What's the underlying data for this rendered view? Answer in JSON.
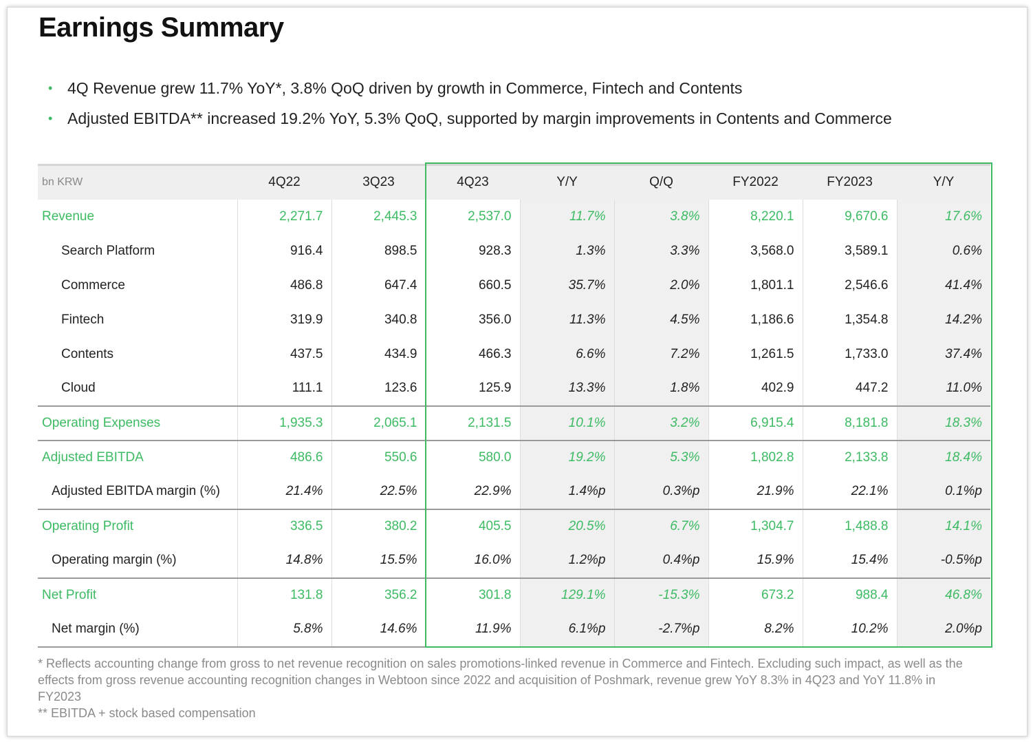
{
  "title": "Earnings Summary",
  "bullets": [
    "4Q Revenue grew 11.7% YoY*, 3.8% QoQ driven by growth in Commerce, Fintech and Contents",
    "Adjusted EBITDA** increased 19.2% YoY, 5.3% QoQ, supported by margin improvements in Contents and Commerce"
  ],
  "accent_color": "#3dbb63",
  "table": {
    "unit": "bn KRW",
    "columns": [
      "4Q22",
      "3Q23",
      "4Q23",
      "Y/Y",
      "Q/Q",
      "FY2022",
      "FY2023",
      "Y/Y"
    ],
    "rows": [
      {
        "label": "Revenue",
        "type": "group",
        "values": [
          "2,271.7",
          "2,445.3",
          "2,537.0",
          "11.7%",
          "3.8%",
          "8,220.1",
          "9,670.6",
          "17.6%"
        ]
      },
      {
        "label": "Search Platform",
        "type": "sub",
        "values": [
          "916.4",
          "898.5",
          "928.3",
          "1.3%",
          "3.3%",
          "3,568.0",
          "3,589.1",
          "0.6%"
        ]
      },
      {
        "label": "Commerce",
        "type": "sub",
        "values": [
          "486.8",
          "647.4",
          "660.5",
          "35.7%",
          "2.0%",
          "1,801.1",
          "2,546.6",
          "41.4%"
        ]
      },
      {
        "label": "Fintech",
        "type": "sub",
        "values": [
          "319.9",
          "340.8",
          "356.0",
          "11.3%",
          "4.5%",
          "1,186.6",
          "1,354.8",
          "14.2%"
        ]
      },
      {
        "label": "Contents",
        "type": "sub",
        "values": [
          "437.5",
          "434.9",
          "466.3",
          "6.6%",
          "7.2%",
          "1,261.5",
          "1,733.0",
          "37.4%"
        ]
      },
      {
        "label": "Cloud",
        "type": "sub",
        "values": [
          "111.1",
          "123.6",
          "125.9",
          "13.3%",
          "1.8%",
          "402.9",
          "447.2",
          "11.0%"
        ]
      },
      {
        "label": "Operating Expenses",
        "type": "group",
        "values": [
          "1,935.3",
          "2,065.1",
          "2,131.5",
          "10.1%",
          "3.2%",
          "6,915.4",
          "8,181.8",
          "18.3%"
        ]
      },
      {
        "label": "Adjusted EBITDA",
        "type": "group",
        "values": [
          "486.6",
          "550.6",
          "580.0",
          "19.2%",
          "5.3%",
          "1,802.8",
          "2,133.8",
          "18.4%"
        ]
      },
      {
        "label": "Adjusted EBITDA margin (%)",
        "type": "margin",
        "values": [
          "21.4%",
          "22.5%",
          "22.9%",
          "1.4%p",
          "0.3%p",
          "21.9%",
          "22.1%",
          "0.1%p"
        ]
      },
      {
        "label": "Operating Profit",
        "type": "group",
        "values": [
          "336.5",
          "380.2",
          "405.5",
          "20.5%",
          "6.7%",
          "1,304.7",
          "1,488.8",
          "14.1%"
        ]
      },
      {
        "label": "Operating margin (%)",
        "type": "margin",
        "values": [
          "14.8%",
          "15.5%",
          "16.0%",
          "1.2%p",
          "0.4%p",
          "15.9%",
          "15.4%",
          "-0.5%p"
        ]
      },
      {
        "label": "Net Profit",
        "type": "group",
        "values": [
          "131.8",
          "356.2",
          "301.8",
          "129.1%",
          "-15.3%",
          "673.2",
          "988.4",
          "46.8%"
        ]
      },
      {
        "label": "Net margin (%)",
        "type": "margin",
        "values": [
          "5.8%",
          "14.6%",
          "11.9%",
          "6.1%p",
          "-2.7%p",
          "8.2%",
          "10.2%",
          "2.0%p"
        ]
      }
    ]
  },
  "footnotes": [
    "* Reflects accounting change from gross to net revenue recognition on sales promotions-linked revenue in Commerce and Fintech. Excluding such impact, as well as the effects from gross revenue accounting recognition changes in Webtoon since 2022 and acquisition of Poshmark, revenue grew YoY 8.3% in 4Q23 and YoY 11.8% in FY2023",
    "** EBITDA + stock based compensation"
  ]
}
